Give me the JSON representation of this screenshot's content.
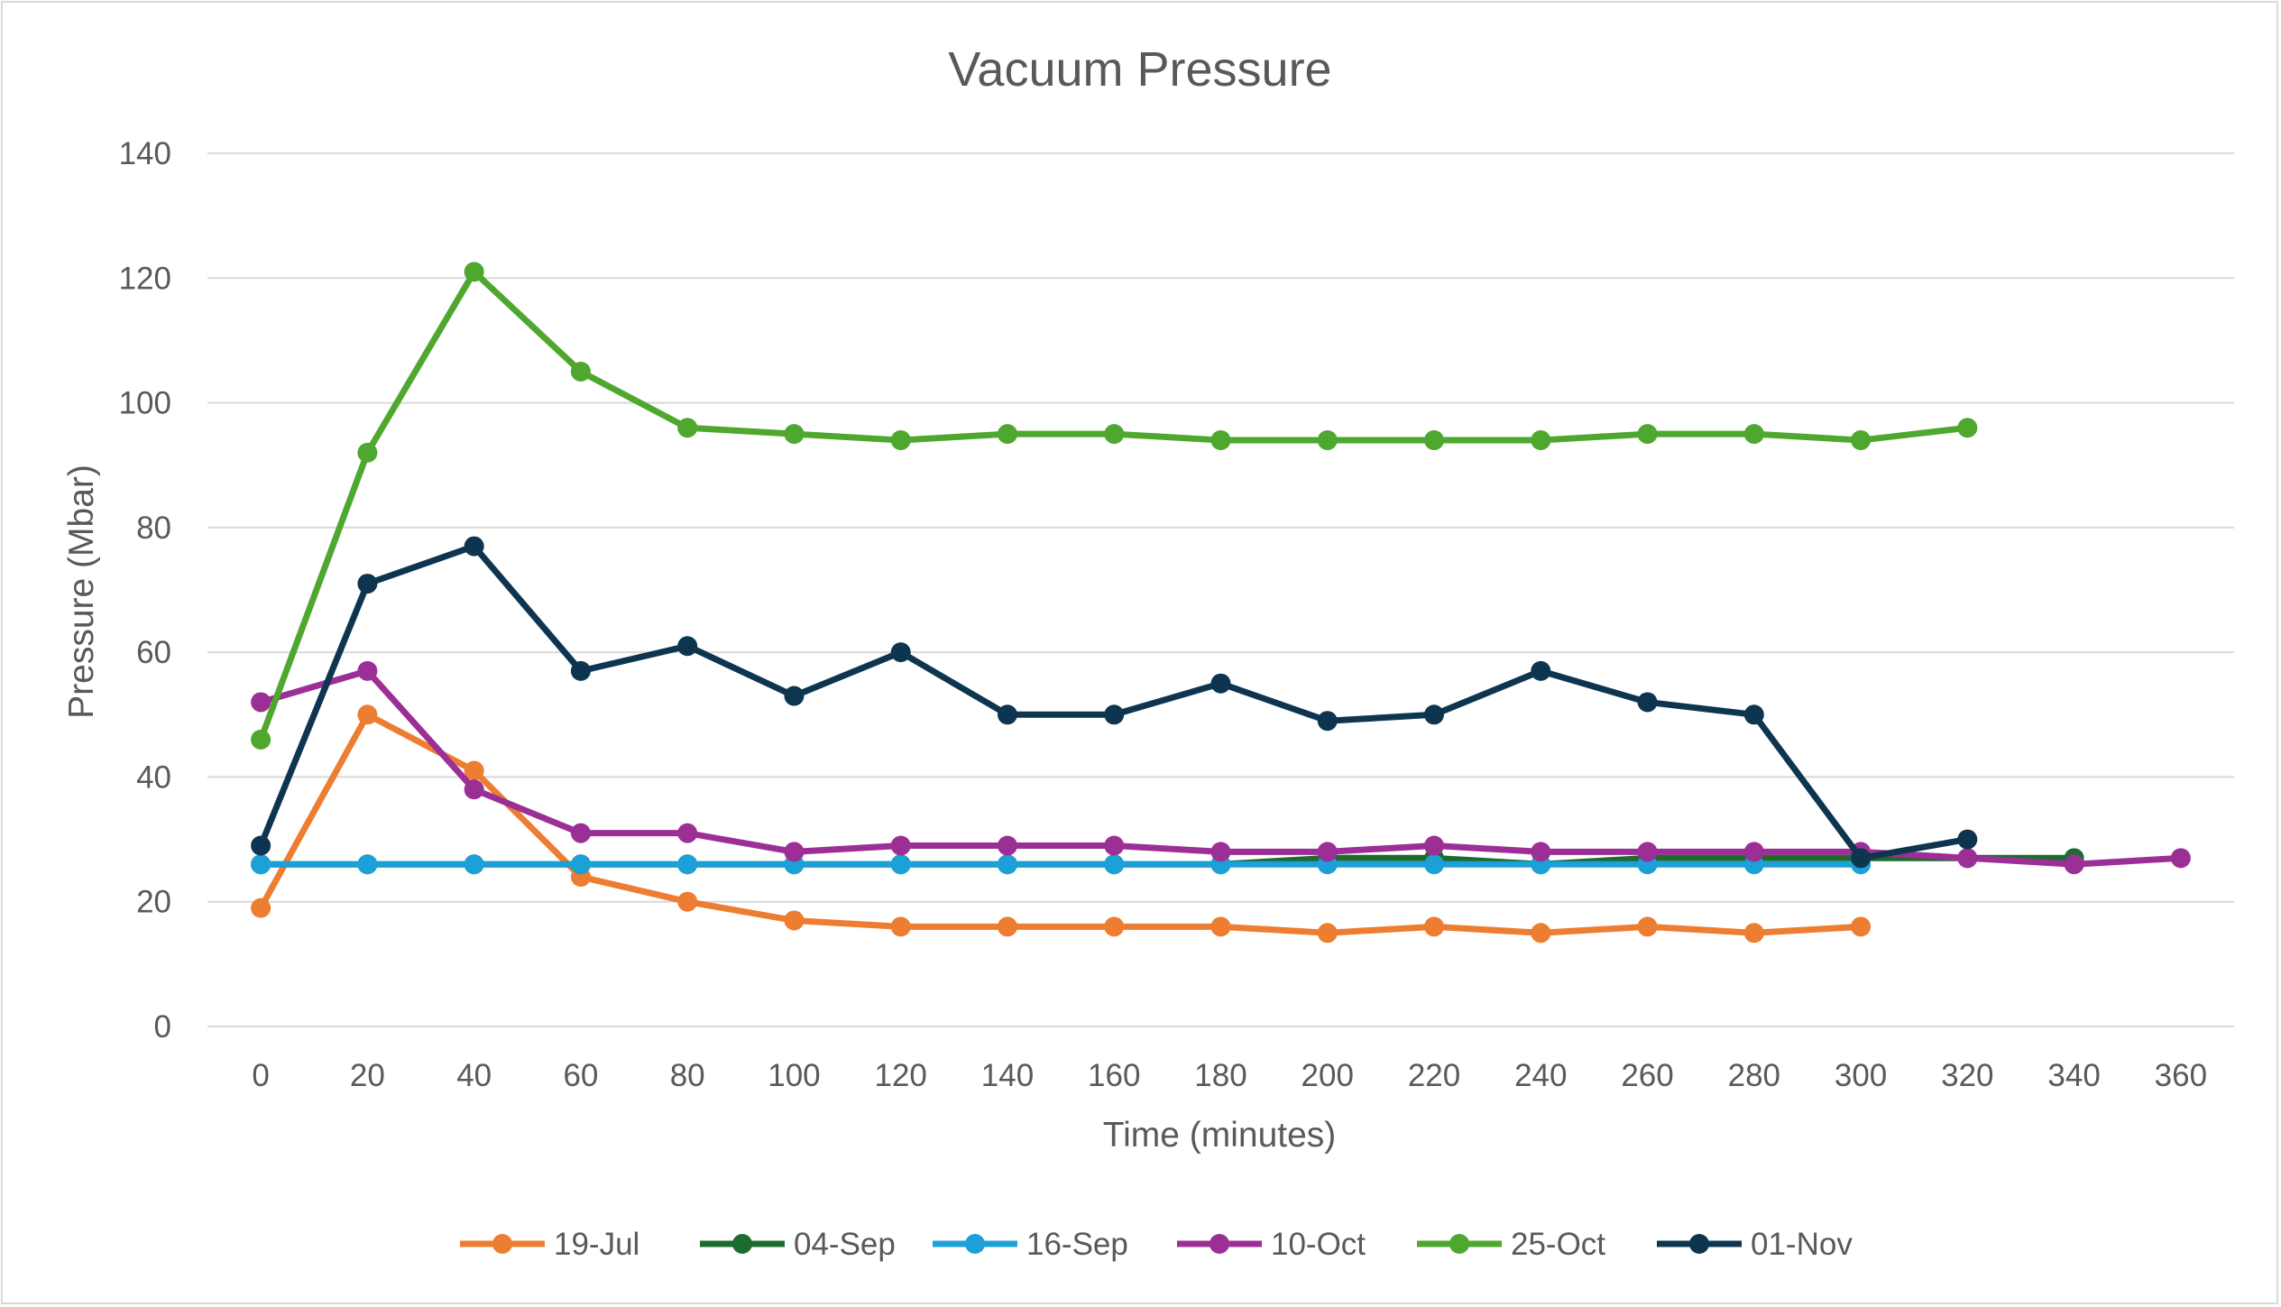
{
  "chart_data": {
    "type": "line",
    "title": "Vacuum Pressure",
    "xlabel": "Time (minutes)",
    "ylabel": "Pressure  (Mbar)",
    "ylim": [
      0,
      140
    ],
    "yticks": [
      0,
      20,
      40,
      60,
      80,
      100,
      120,
      140
    ],
    "categories": [
      "0",
      "20",
      "40",
      "60",
      "80",
      "100",
      "120",
      "140",
      "160",
      "180",
      "200",
      "220",
      "240",
      "260",
      "280",
      "300",
      "320",
      "340",
      "360"
    ],
    "grid": true,
    "legend_position": "bottom",
    "series": [
      {
        "name": "19-Jul",
        "color": "#ED7D31",
        "values": [
          19,
          50,
          41,
          24,
          20,
          17,
          16,
          16,
          16,
          16,
          15,
          16,
          15,
          16,
          15,
          16,
          null,
          null,
          null
        ]
      },
      {
        "name": "04-Sep",
        "color": "#1E6B2E",
        "values": [
          26,
          26,
          26,
          26,
          26,
          26,
          26,
          26,
          26,
          26,
          27,
          27,
          26,
          27,
          27,
          27,
          27,
          27,
          null
        ]
      },
      {
        "name": "16-Sep",
        "color": "#1BA1D8",
        "values": [
          26,
          26,
          26,
          26,
          26,
          26,
          26,
          26,
          26,
          26,
          26,
          26,
          26,
          26,
          26,
          26,
          null,
          null,
          null
        ]
      },
      {
        "name": "10-Oct",
        "color": "#9C2F96",
        "values": [
          52,
          57,
          38,
          31,
          31,
          28,
          29,
          29,
          29,
          28,
          28,
          29,
          28,
          28,
          28,
          28,
          27,
          26,
          27
        ]
      },
      {
        "name": "25-Oct",
        "color": "#4EA72E",
        "values": [
          46,
          92,
          121,
          105,
          96,
          95,
          94,
          95,
          95,
          94,
          94,
          94,
          94,
          95,
          95,
          94,
          96,
          null,
          null
        ]
      },
      {
        "name": "01-Nov",
        "color": "#0E3550",
        "values": [
          29,
          71,
          77,
          57,
          61,
          53,
          60,
          50,
          50,
          55,
          49,
          50,
          57,
          52,
          50,
          27,
          30,
          null,
          null
        ]
      }
    ]
  }
}
